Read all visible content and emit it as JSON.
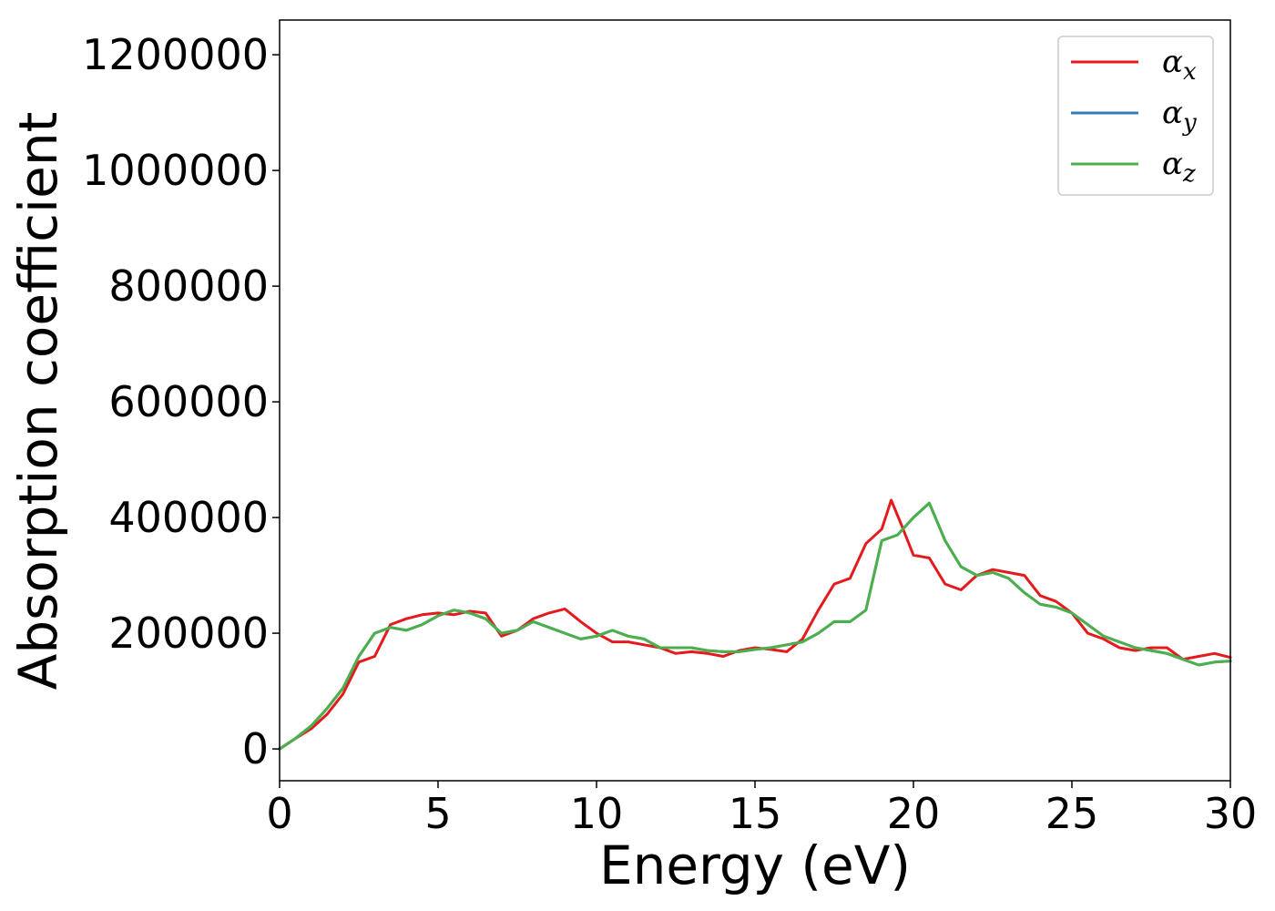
{
  "chart_data": {
    "type": "line",
    "xlabel": "Energy (eV)",
    "ylabel": "Absorption coefficient",
    "xlim": [
      0,
      30
    ],
    "ylim": [
      -55000,
      1260000
    ],
    "x_ticks": [
      "0",
      "5",
      "10",
      "15",
      "20",
      "25",
      "30"
    ],
    "y_ticks": [
      "0",
      "200000",
      "400000",
      "600000",
      "800000",
      "1000000",
      "1200000"
    ],
    "legend_position": "top-right",
    "grid": false,
    "series": [
      {
        "name": "αx",
        "color": "#e41a1c",
        "x": [
          0,
          0.5,
          1,
          1.5,
          2,
          2.5,
          3,
          3.5,
          4,
          4.5,
          5,
          5.5,
          6,
          6.5,
          7,
          7.5,
          8,
          8.5,
          9,
          9.5,
          10,
          10.5,
          11,
          11.5,
          12,
          12.5,
          13,
          13.5,
          14,
          14.5,
          15,
          15.5,
          16,
          16.5,
          17,
          17.5,
          18,
          18.5,
          19,
          19.3,
          19.6,
          20,
          20.5,
          21,
          21.5,
          22,
          22.5,
          23,
          23.5,
          24,
          24.5,
          25,
          25.5,
          26,
          26.5,
          27,
          27.5,
          28,
          28.5,
          29,
          29.5,
          30
        ],
        "y": [
          0,
          18000,
          35000,
          60000,
          95000,
          150000,
          160000,
          215000,
          225000,
          232000,
          235000,
          232000,
          238000,
          235000,
          195000,
          205000,
          225000,
          235000,
          242000,
          220000,
          200000,
          185000,
          185000,
          180000,
          175000,
          165000,
          168000,
          165000,
          160000,
          170000,
          175000,
          172000,
          168000,
          190000,
          240000,
          285000,
          295000,
          355000,
          380000,
          430000,
          390000,
          335000,
          330000,
          285000,
          275000,
          300000,
          310000,
          305000,
          300000,
          265000,
          255000,
          235000,
          200000,
          190000,
          175000,
          170000,
          175000,
          175000,
          155000,
          160000,
          165000,
          158000
        ]
      },
      {
        "name": "αy",
        "color": "#377eb8",
        "x": [
          0,
          0.5,
          1,
          1.5,
          2,
          2.5,
          3,
          3.5,
          4,
          4.5,
          5,
          5.5,
          6,
          6.5,
          7,
          7.5,
          8,
          8.5,
          9,
          9.5,
          10,
          10.5,
          11,
          11.5,
          12,
          12.5,
          13,
          13.5,
          14,
          14.5,
          15,
          15.5,
          16,
          16.5,
          17,
          17.5,
          18,
          18.5,
          19,
          19.5,
          20,
          20.5,
          21,
          21.5,
          22,
          22.5,
          23,
          23.5,
          24,
          24.5,
          25,
          25.5,
          26,
          26.5,
          27,
          27.5,
          28,
          28.5,
          29,
          29.5,
          30
        ],
        "y": [
          0,
          18000,
          40000,
          70000,
          105000,
          160000,
          200000,
          210000,
          205000,
          215000,
          230000,
          240000,
          235000,
          225000,
          200000,
          205000,
          220000,
          210000,
          200000,
          190000,
          195000,
          205000,
          195000,
          190000,
          175000,
          175000,
          175000,
          170000,
          168000,
          168000,
          172000,
          175000,
          180000,
          185000,
          200000,
          220000,
          220000,
          240000,
          360000,
          370000,
          400000,
          425000,
          360000,
          315000,
          300000,
          305000,
          295000,
          270000,
          250000,
          245000,
          235000,
          215000,
          195000,
          185000,
          175000,
          170000,
          165000,
          155000,
          145000,
          150000,
          152000
        ]
      },
      {
        "name": "αz",
        "color": "#4daf4a",
        "x": [
          0,
          0.5,
          1,
          1.5,
          2,
          2.5,
          3,
          3.5,
          4,
          4.5,
          5,
          5.5,
          6,
          6.5,
          7,
          7.5,
          8,
          8.5,
          9,
          9.5,
          10,
          10.5,
          11,
          11.5,
          12,
          12.5,
          13,
          13.5,
          14,
          14.5,
          15,
          15.5,
          16,
          16.5,
          17,
          17.5,
          18,
          18.5,
          19,
          19.5,
          20,
          20.5,
          21,
          21.5,
          22,
          22.5,
          23,
          23.5,
          24,
          24.5,
          25,
          25.5,
          26,
          26.5,
          27,
          27.5,
          28,
          28.5,
          29,
          29.5,
          30
        ],
        "y": [
          0,
          18000,
          40000,
          70000,
          105000,
          160000,
          200000,
          210000,
          205000,
          215000,
          230000,
          240000,
          235000,
          225000,
          200000,
          205000,
          220000,
          210000,
          200000,
          190000,
          195000,
          205000,
          195000,
          190000,
          175000,
          175000,
          175000,
          170000,
          168000,
          168000,
          172000,
          175000,
          180000,
          185000,
          200000,
          220000,
          220000,
          240000,
          360000,
          370000,
          400000,
          425000,
          360000,
          315000,
          300000,
          305000,
          295000,
          270000,
          250000,
          245000,
          235000,
          215000,
          195000,
          185000,
          175000,
          170000,
          165000,
          155000,
          145000,
          150000,
          152000
        ]
      }
    ]
  }
}
